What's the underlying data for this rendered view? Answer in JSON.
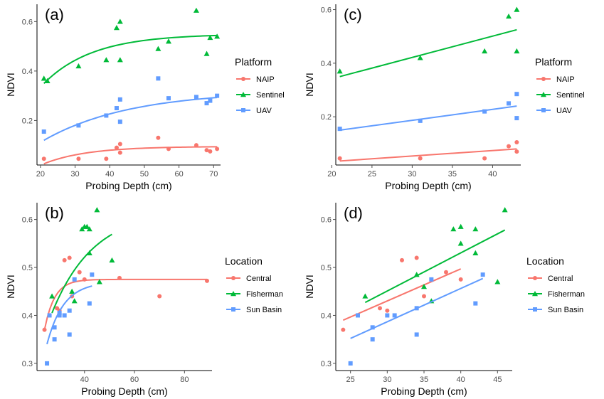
{
  "colors": {
    "red": "#F8766D",
    "green": "#00BA38",
    "blue": "#619CFF",
    "axis": "#000000",
    "tick": "#4D4D4D"
  },
  "legends": {
    "top": {
      "title": "Platform",
      "items": [
        "NAIP",
        "Sentinel",
        "UAV"
      ]
    },
    "bottom": {
      "title": "Location",
      "items": [
        "Central",
        "Fisherman",
        "Sun Basin"
      ]
    }
  },
  "chart_data": [
    {
      "panel_label": "(a)",
      "type": "scatter",
      "xlabel": "Probing Depth (cm)",
      "ylabel": "NDVI",
      "xlim": [
        19,
        72
      ],
      "ylim": [
        0.02,
        0.67
      ],
      "xticks": [
        20,
        30,
        40,
        50,
        60,
        70
      ],
      "yticks": [
        0.2,
        0.4,
        0.6
      ],
      "ytick_labels": [
        "0.2",
        "0.4",
        "0.6"
      ],
      "legend": "top",
      "series": [
        {
          "name": "NAIP",
          "color": "red",
          "marker": "circle",
          "points": [
            [
              21,
              0.045
            ],
            [
              31,
              0.045
            ],
            [
              39,
              0.045
            ],
            [
              42,
              0.09
            ],
            [
              43,
              0.105
            ],
            [
              43,
              0.07
            ],
            [
              54,
              0.13
            ],
            [
              57,
              0.085
            ],
            [
              65,
              0.1
            ],
            [
              68,
              0.08
            ],
            [
              69,
              0.075
            ],
            [
              71,
              0.085
            ]
          ],
          "fit": {
            "kind": "exp",
            "a": 0.095,
            "b": 0.07,
            "k": 0.08
          }
        },
        {
          "name": "Sentinel",
          "color": "green",
          "marker": "triangle",
          "points": [
            [
              21,
              0.37
            ],
            [
              22,
              0.36
            ],
            [
              31,
              0.42
            ],
            [
              39,
              0.445
            ],
            [
              42,
              0.575
            ],
            [
              43,
              0.6
            ],
            [
              43,
              0.445
            ],
            [
              54,
              0.49
            ],
            [
              57,
              0.52
            ],
            [
              65,
              0.645
            ],
            [
              68,
              0.47
            ],
            [
              69,
              0.535
            ],
            [
              71,
              0.54
            ]
          ],
          "fit": {
            "kind": "exp",
            "a": 0.55,
            "b": 0.2,
            "k": 0.07
          }
        },
        {
          "name": "UAV",
          "color": "blue",
          "marker": "square",
          "points": [
            [
              21,
              0.155
            ],
            [
              31,
              0.18
            ],
            [
              39,
              0.22
            ],
            [
              42,
              0.25
            ],
            [
              43,
              0.285
            ],
            [
              43,
              0.195
            ],
            [
              54,
              0.37
            ],
            [
              57,
              0.29
            ],
            [
              65,
              0.295
            ],
            [
              68,
              0.27
            ],
            [
              69,
              0.28
            ],
            [
              71,
              0.3
            ]
          ],
          "fit": {
            "kind": "exp",
            "a": 0.32,
            "b": 0.2,
            "k": 0.04
          }
        }
      ]
    },
    {
      "panel_label": "(c)",
      "type": "scatter",
      "xlabel": "Probing Depth (cm)",
      "ylabel": "NDVI",
      "xlim": [
        20.5,
        43.5
      ],
      "ylim": [
        0.02,
        0.62
      ],
      "xticks": [
        20,
        25,
        30,
        35,
        40
      ],
      "yticks": [
        0.2,
        0.4,
        0.6
      ],
      "ytick_labels": [
        "0.2",
        "0.4",
        "0.6"
      ],
      "legend": "top",
      "series": [
        {
          "name": "NAIP",
          "color": "red",
          "marker": "circle",
          "points": [
            [
              21,
              0.045
            ],
            [
              31,
              0.045
            ],
            [
              39,
              0.045
            ],
            [
              42,
              0.09
            ],
            [
              43,
              0.105
            ],
            [
              43,
              0.07
            ]
          ],
          "fit": {
            "kind": "linear",
            "x0": 21,
            "y0": 0.035,
            "x1": 43,
            "y1": 0.08
          }
        },
        {
          "name": "Sentinel",
          "color": "green",
          "marker": "triangle",
          "points": [
            [
              21,
              0.37
            ],
            [
              31,
              0.42
            ],
            [
              39,
              0.445
            ],
            [
              42,
              0.575
            ],
            [
              43,
              0.6
            ],
            [
              43,
              0.445
            ]
          ],
          "fit": {
            "kind": "linear",
            "x0": 21,
            "y0": 0.35,
            "x1": 43,
            "y1": 0.525
          }
        },
        {
          "name": "UAV",
          "color": "blue",
          "marker": "square",
          "points": [
            [
              21,
              0.155
            ],
            [
              31,
              0.185
            ],
            [
              39,
              0.22
            ],
            [
              42,
              0.25
            ],
            [
              43,
              0.285
            ],
            [
              43,
              0.195
            ]
          ],
          "fit": {
            "kind": "linear",
            "x0": 21,
            "y0": 0.15,
            "x1": 43,
            "y1": 0.24
          }
        }
      ]
    },
    {
      "panel_label": "(b)",
      "type": "scatter",
      "xlabel": "Probing Depth (cm)",
      "ylabel": "NDVI",
      "xlim": [
        21,
        91
      ],
      "ylim": [
        0.285,
        0.635
      ],
      "xticks": [
        40,
        60,
        80
      ],
      "yticks": [
        0.3,
        0.4,
        0.5,
        0.6
      ],
      "ytick_labels": [
        "0.3",
        "0.4",
        "0.5",
        "0.6"
      ],
      "legend": "bottom",
      "series": [
        {
          "name": "Central",
          "color": "red",
          "marker": "circle",
          "points": [
            [
              24,
              0.37
            ],
            [
              29,
              0.415
            ],
            [
              30,
              0.41
            ],
            [
              32,
              0.515
            ],
            [
              34,
              0.52
            ],
            [
              35,
              0.44
            ],
            [
              38,
              0.49
            ],
            [
              40,
              0.475
            ],
            [
              54,
              0.478
            ],
            [
              70,
              0.44
            ],
            [
              89,
              0.472
            ]
          ],
          "fit": {
            "kind": "exp",
            "a": 0.475,
            "b": 0.105,
            "k": 0.25,
            "x0": 24,
            "x1": 89
          }
        },
        {
          "name": "Fisherman",
          "color": "green",
          "marker": "triangle",
          "points": [
            [
              27,
              0.44
            ],
            [
              35,
              0.45
            ],
            [
              36,
              0.43
            ],
            [
              39,
              0.58
            ],
            [
              40,
              0.585
            ],
            [
              41,
              0.585
            ],
            [
              42,
              0.53
            ],
            [
              42,
              0.58
            ],
            [
              45,
              0.62
            ],
            [
              46,
              0.47
            ],
            [
              51,
              0.515
            ]
          ],
          "fit": {
            "kind": "exp",
            "a": 0.62,
            "b": 0.215,
            "k": 0.06,
            "x0": 27,
            "x1": 51
          }
        },
        {
          "name": "Sun Basin",
          "color": "blue",
          "marker": "square",
          "points": [
            [
              25,
              0.3
            ],
            [
              26,
              0.4
            ],
            [
              28,
              0.35
            ],
            [
              28,
              0.375
            ],
            [
              30,
              0.4
            ],
            [
              30,
              0.405
            ],
            [
              32,
              0.4
            ],
            [
              34,
              0.36
            ],
            [
              34,
              0.41
            ],
            [
              36,
              0.475
            ],
            [
              42,
              0.425
            ],
            [
              43,
              0.485
            ]
          ],
          "fit": {
            "kind": "exp",
            "a": 0.47,
            "b": 0.13,
            "k": 0.15,
            "x0": 25,
            "x1": 43
          }
        }
      ]
    },
    {
      "panel_label": "(d)",
      "type": "scatter",
      "xlabel": "Probing Depth (cm)",
      "ylabel": "NDVI",
      "xlim": [
        23,
        47
      ],
      "ylim": [
        0.285,
        0.635
      ],
      "xticks": [
        25,
        30,
        35,
        40,
        45
      ],
      "yticks": [
        0.3,
        0.4,
        0.5,
        0.6
      ],
      "ytick_labels": [
        "0.3",
        "0.4",
        "0.5",
        "0.6"
      ],
      "legend": "bottom",
      "series": [
        {
          "name": "Central",
          "color": "red",
          "marker": "circle",
          "points": [
            [
              24,
              0.37
            ],
            [
              29,
              0.415
            ],
            [
              30,
              0.41
            ],
            [
              32,
              0.515
            ],
            [
              34,
              0.52
            ],
            [
              35,
              0.44
            ],
            [
              38,
              0.49
            ],
            [
              40,
              0.475
            ]
          ],
          "fit": {
            "kind": "linear",
            "x0": 24,
            "y0": 0.39,
            "x1": 40,
            "y1": 0.497
          }
        },
        {
          "name": "Fisherman",
          "color": "green",
          "marker": "triangle",
          "points": [
            [
              27,
              0.44
            ],
            [
              34,
              0.485
            ],
            [
              35,
              0.46
            ],
            [
              36,
              0.43
            ],
            [
              39,
              0.58
            ],
            [
              40,
              0.585
            ],
            [
              40,
              0.55
            ],
            [
              42,
              0.58
            ],
            [
              42,
              0.53
            ],
            [
              45,
              0.47
            ],
            [
              46,
              0.62
            ]
          ],
          "fit": {
            "kind": "linear",
            "x0": 27,
            "y0": 0.427,
            "x1": 46,
            "y1": 0.578
          }
        },
        {
          "name": "Sun Basin",
          "color": "blue",
          "marker": "square",
          "points": [
            [
              25,
              0.3
            ],
            [
              26,
              0.4
            ],
            [
              28,
              0.35
            ],
            [
              28,
              0.375
            ],
            [
              30,
              0.4
            ],
            [
              31,
              0.4
            ],
            [
              34,
              0.36
            ],
            [
              34,
              0.415
            ],
            [
              36,
              0.475
            ],
            [
              42,
              0.425
            ],
            [
              43,
              0.485
            ]
          ],
          "fit": {
            "kind": "linear",
            "x0": 25,
            "y0": 0.352,
            "x1": 43,
            "y1": 0.477
          }
        }
      ]
    }
  ]
}
